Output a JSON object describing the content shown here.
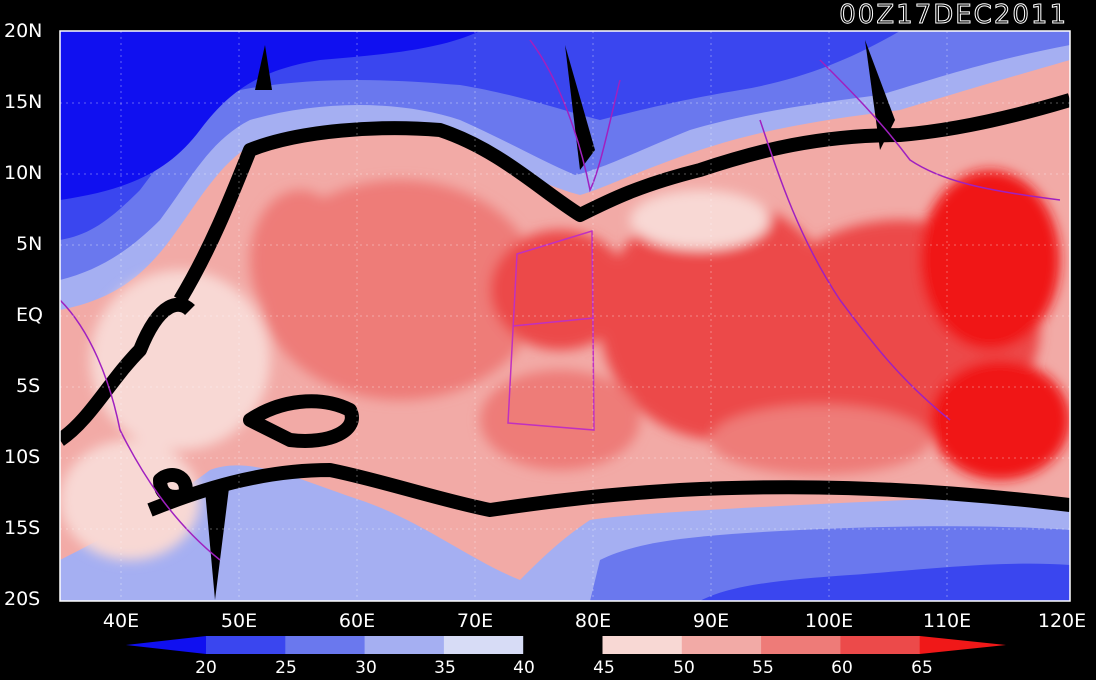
{
  "title": "00Z17DEC2011",
  "lat_labels": [
    "20N",
    "15N",
    "10N",
    "5N",
    "EQ",
    "5S",
    "10S",
    "15S",
    "20S"
  ],
  "lon_labels": [
    "40E",
    "50E",
    "60E",
    "70E",
    "80E",
    "90E",
    "100E",
    "110E",
    "120E"
  ],
  "colorbar": {
    "levels": [
      "20",
      "25",
      "30",
      "35",
      "40",
      "45",
      "50",
      "55",
      "60",
      "65"
    ],
    "colors": [
      "#1010f0",
      "#3a46ef",
      "#6a78ee",
      "#a5aff2",
      "#d7dcf6",
      "#000000",
      "#f8d8d4",
      "#f2aaa6",
      "#ee7b78",
      "#ec4a4a",
      "#f01818"
    ]
  },
  "colors": {
    "background": "#000000",
    "coastline": "#a020c0",
    "box": "#c030c0",
    "frame": "#ffffff"
  }
}
